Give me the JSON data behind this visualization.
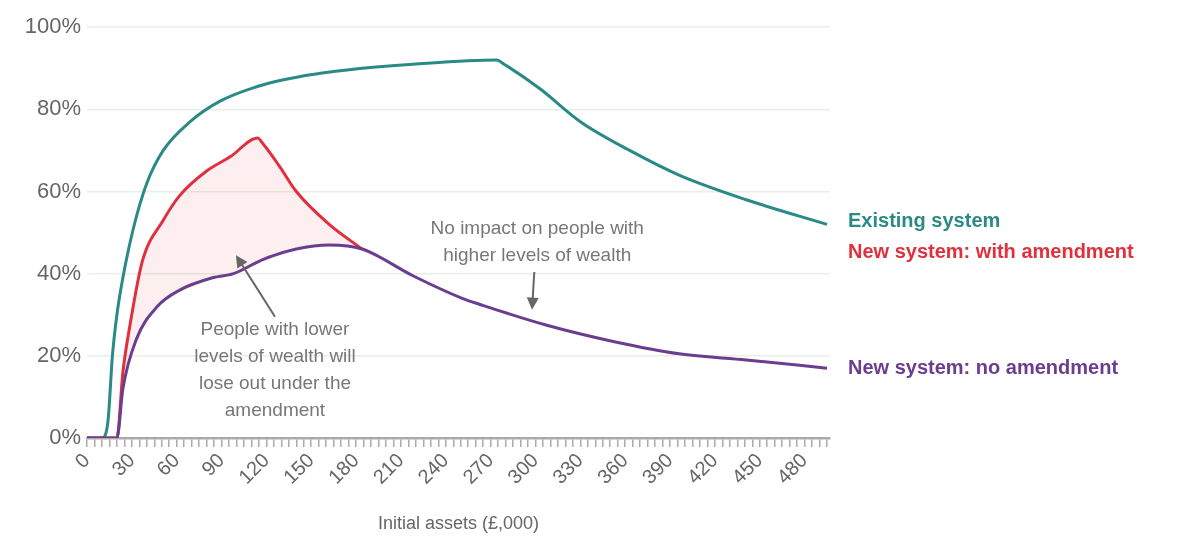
{
  "chart_data": {
    "type": "line",
    "xlabel": "Initial assets (£,000)",
    "xlim": [
      0,
      497
    ],
    "xticks": [
      0,
      {
        "value": 5,
        "label": null
      },
      {
        "value": 10,
        "label": null
      },
      {
        "value": 15,
        "label": null
      },
      {
        "value": 20,
        "label": null
      },
      {
        "value": 25,
        "label": null
      },
      30,
      {
        "value": 35,
        "label": null
      },
      {
        "value": 40,
        "label": null
      },
      {
        "value": 45,
        "label": null
      },
      {
        "value": 50,
        "label": null
      },
      {
        "value": 55,
        "label": null
      },
      60,
      {
        "value": 65,
        "label": null
      },
      {
        "value": 70,
        "label": null
      },
      {
        "value": 75,
        "label": null
      },
      {
        "value": 80,
        "label": null
      },
      {
        "value": 85,
        "label": null
      },
      90,
      {
        "value": 95,
        "label": null
      },
      {
        "value": 100,
        "label": null
      },
      {
        "value": 105,
        "label": null
      },
      {
        "value": 110,
        "label": null
      },
      {
        "value": 115,
        "label": null
      },
      120,
      {
        "value": 125,
        "label": null
      },
      {
        "value": 130,
        "label": null
      },
      {
        "value": 135,
        "label": null
      },
      {
        "value": 140,
        "label": null
      },
      {
        "value": 145,
        "label": null
      },
      150,
      {
        "value": 155,
        "label": null
      },
      {
        "value": 160,
        "label": null
      },
      {
        "value": 165,
        "label": null
      },
      {
        "value": 170,
        "label": null
      },
      {
        "value": 175,
        "label": null
      },
      180,
      {
        "value": 185,
        "label": null
      },
      {
        "value": 190,
        "label": null
      },
      {
        "value": 195,
        "label": null
      },
      {
        "value": 200,
        "label": null
      },
      {
        "value": 205,
        "label": null
      },
      210,
      {
        "value": 215,
        "label": null
      },
      {
        "value": 220,
        "label": null
      },
      {
        "value": 225,
        "label": null
      },
      {
        "value": 230,
        "label": null
      },
      {
        "value": 235,
        "label": null
      },
      240,
      {
        "value": 245,
        "label": null
      },
      {
        "value": 250,
        "label": null
      },
      {
        "value": 255,
        "label": null
      },
      {
        "value": 260,
        "label": null
      },
      {
        "value": 265,
        "label": null
      },
      270,
      {
        "value": 275,
        "label": null
      },
      {
        "value": 280,
        "label": null
      },
      {
        "value": 285,
        "label": null
      },
      {
        "value": 290,
        "label": null
      },
      {
        "value": 295,
        "label": null
      },
      300,
      {
        "value": 305,
        "label": null
      },
      {
        "value": 310,
        "label": null
      },
      {
        "value": 315,
        "label": null
      },
      {
        "value": 320,
        "label": null
      },
      {
        "value": 325,
        "label": null
      },
      330,
      {
        "value": 335,
        "label": null
      },
      {
        "value": 340,
        "label": null
      },
      {
        "value": 345,
        "label": null
      },
      {
        "value": 350,
        "label": null
      },
      {
        "value": 355,
        "label": null
      },
      360,
      {
        "value": 365,
        "label": null
      },
      {
        "value": 370,
        "label": null
      },
      {
        "value": 375,
        "label": null
      },
      {
        "value": 380,
        "label": null
      },
      {
        "value": 385,
        "label": null
      },
      390,
      {
        "value": 395,
        "label": null
      },
      {
        "value": 400,
        "label": null
      },
      {
        "value": 405,
        "label": null
      },
      {
        "value": 410,
        "label": null
      },
      {
        "value": 415,
        "label": null
      },
      420,
      {
        "value": 425,
        "label": null
      },
      {
        "value": 430,
        "label": null
      },
      {
        "value": 435,
        "label": null
      },
      {
        "value": 440,
        "label": null
      },
      {
        "value": 445,
        "label": null
      },
      450,
      {
        "value": 455,
        "label": null
      },
      {
        "value": 460,
        "label": null
      },
      {
        "value": 465,
        "label": null
      },
      {
        "value": 470,
        "label": null
      },
      {
        "value": 475,
        "label": null
      },
      480,
      {
        "value": 485,
        "label": null
      },
      {
        "value": 490,
        "label": null
      },
      {
        "value": 495,
        "label": null
      }
    ],
    "ylim": [
      0,
      100
    ],
    "yticks": [
      {
        "value": 0,
        "label": "0%"
      },
      {
        "value": 20,
        "label": "20%"
      },
      {
        "value": 40,
        "label": "40%"
      },
      {
        "value": 60,
        "label": "60%"
      },
      {
        "value": 80,
        "label": "80%"
      },
      {
        "value": 100,
        "label": "100%"
      }
    ],
    "grid": "y",
    "legend": false,
    "marker": "none",
    "series": [
      {
        "name": "Existing system",
        "color": "#2a8a85",
        "x": [
          0,
          10,
          14,
          17,
          20,
          24,
          31,
          40,
          51,
          69,
          89,
          118,
          151,
          184,
          218,
          274,
          279,
          303,
          330,
          363,
          396,
          441,
          495
        ],
        "values": [
          0,
          0,
          4,
          20,
          30,
          39,
          51,
          62,
          70,
          77,
          82,
          86,
          88.5,
          90,
          91,
          92,
          91,
          85,
          77,
          70,
          64,
          58,
          52
        ]
      },
      {
        "name": "New system: with amendment",
        "color": "#e0303e",
        "x": [
          0,
          20,
          24,
          29,
          37,
          51,
          62,
          80,
          96,
          114,
          118,
          129,
          140,
          162,
          184
        ],
        "values": [
          0,
          0,
          16,
          28,
          43,
          53,
          59,
          65,
          68.5,
          73,
          71.5,
          66,
          60,
          52,
          46
        ]
      },
      {
        "name": "New system: no amendment",
        "color": "#6b3d8f",
        "x": [
          0,
          20,
          24,
          33,
          47,
          62,
          84,
          98,
          118,
          140,
          162,
          184,
          218,
          251,
          263,
          307,
          352,
          396,
          441,
          495
        ],
        "values": [
          0,
          0,
          12,
          24,
          32,
          36,
          39,
          40,
          43.5,
          46,
          47,
          46,
          39.5,
          34,
          32.5,
          27.5,
          23.5,
          20.5,
          19,
          17
        ]
      }
    ],
    "annotations": [
      "People with lower levels of wealth will lose out under the amendment",
      "No impact on people with higher levels of wealth"
    ]
  }
}
